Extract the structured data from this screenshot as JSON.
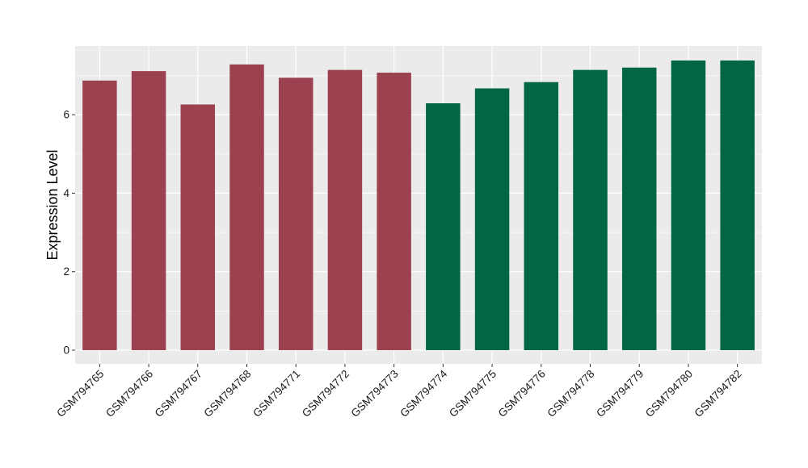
{
  "chart_data": {
    "type": "bar",
    "title": "",
    "xlabel": "",
    "ylabel": "Expression Level",
    "ylim": [
      -0.35,
      7.75
    ],
    "yticks": [
      0,
      2,
      4,
      6
    ],
    "grid": true,
    "legend": "none",
    "panel_background": "#ebebeb",
    "grid_color": "#ffffff",
    "categories": [
      "GSM794765",
      "GSM794766",
      "GSM794767",
      "GSM794768",
      "GSM794771",
      "GSM794772",
      "GSM794773",
      "GSM794774",
      "GSM794775",
      "GSM794776",
      "GSM794778",
      "GSM794779",
      "GSM794780",
      "GSM794782"
    ],
    "values": [
      6.87,
      7.11,
      6.26,
      7.28,
      6.94,
      7.14,
      7.07,
      6.29,
      6.67,
      6.83,
      7.14,
      7.2,
      7.38,
      7.38
    ],
    "bar_colors": [
      "#9b414f",
      "#9b414f",
      "#9b414f",
      "#9b414f",
      "#9b414f",
      "#9b414f",
      "#9b414f",
      "#006644",
      "#006644",
      "#006644",
      "#006644",
      "#006644",
      "#006644",
      "#006644"
    ]
  }
}
